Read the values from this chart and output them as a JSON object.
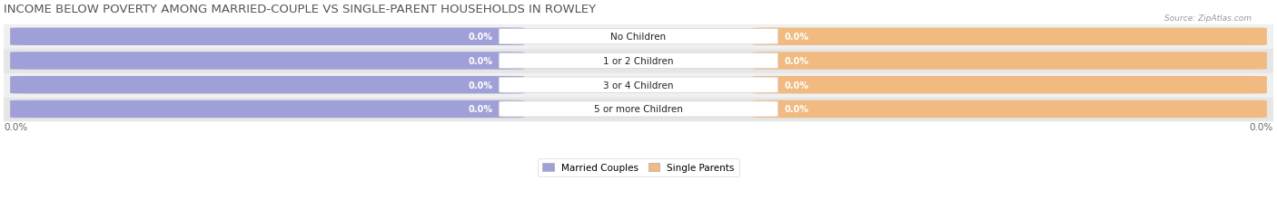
{
  "title": "INCOME BELOW POVERTY AMONG MARRIED-COUPLE VS SINGLE-PARENT HOUSEHOLDS IN ROWLEY",
  "source_text": "Source: ZipAtlas.com",
  "categories": [
    "No Children",
    "1 or 2 Children",
    "3 or 4 Children",
    "5 or more Children"
  ],
  "married_values": [
    0.0,
    0.0,
    0.0,
    0.0
  ],
  "single_values": [
    0.0,
    0.0,
    0.0,
    0.0
  ],
  "married_color": "#a0a0d8",
  "single_color": "#f0ba80",
  "row_colors_even": "#f0f0f0",
  "row_colors_odd": "#e6e6e6",
  "title_fontsize": 9.5,
  "label_fontsize": 7,
  "category_fontsize": 7.5,
  "axis_label": "0.0%",
  "legend_married": "Married Couples",
  "legend_single": "Single Parents",
  "figsize": [
    14.06,
    2.32
  ],
  "dpi": 100
}
